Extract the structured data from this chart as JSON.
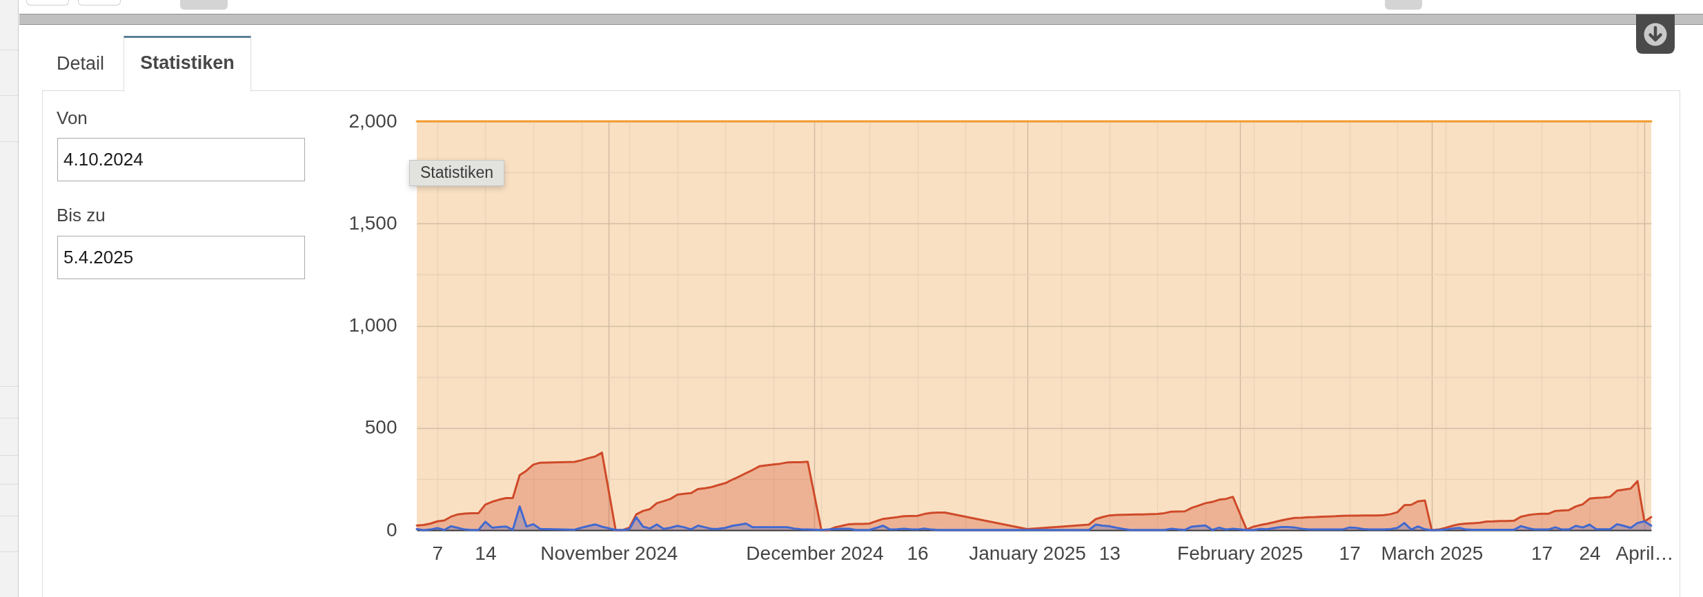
{
  "chart_data": {
    "type": "area",
    "title": "Statistiken",
    "annotations": [
      "Detail",
      "Von",
      "4.10.2024",
      "Bis zu",
      "5.4.2025",
      "Statistiken"
    ],
    "x": [
      "2024-10-04",
      "2024-10-05",
      "2024-10-06",
      "2024-10-07",
      "2024-10-08",
      "2024-10-09",
      "2024-10-10",
      "2024-10-11",
      "2024-10-12",
      "2024-10-13",
      "2024-10-14",
      "2024-10-15",
      "2024-10-16",
      "2024-10-17",
      "2024-10-18",
      "2024-10-19",
      "2024-10-20",
      "2024-10-21",
      "2024-10-22",
      "2024-10-27",
      "2024-10-28",
      "2024-10-29",
      "2024-10-30",
      "2024-10-31",
      "2024-11-02",
      "2024-11-03",
      "2024-11-04",
      "2024-11-05",
      "2024-11-06",
      "2024-11-07",
      "2024-11-08",
      "2024-11-09",
      "2024-11-10",
      "2024-11-11",
      "2024-11-12",
      "2024-11-13",
      "2024-11-14",
      "2024-11-15",
      "2024-11-16",
      "2024-11-17",
      "2024-11-18",
      "2024-11-19",
      "2024-11-20",
      "2024-11-21",
      "2024-11-22",
      "2024-11-23",
      "2024-11-24",
      "2024-11-25",
      "2024-11-26",
      "2024-11-27",
      "2024-11-28",
      "2024-11-29",
      "2024-11-30",
      "2024-12-02",
      "2024-12-03",
      "2024-12-04",
      "2024-12-05",
      "2024-12-06",
      "2024-12-07",
      "2024-12-08",
      "2024-12-09",
      "2024-12-10",
      "2024-12-11",
      "2024-12-12",
      "2024-12-13",
      "2024-12-14",
      "2024-12-15",
      "2024-12-16",
      "2024-12-17",
      "2024-12-18",
      "2024-12-19",
      "2024-12-20",
      "2025-01-01",
      "2025-01-10",
      "2025-01-11",
      "2025-01-12",
      "2025-01-13",
      "2025-01-14",
      "2025-01-15",
      "2025-01-16",
      "2025-01-17",
      "2025-01-18",
      "2025-01-19",
      "2025-01-20",
      "2025-01-21",
      "2025-01-22",
      "2025-01-23",
      "2025-01-24",
      "2025-01-25",
      "2025-01-26",
      "2025-01-27",
      "2025-01-28",
      "2025-01-29",
      "2025-01-30",
      "2025-01-31",
      "2025-02-02",
      "2025-02-03",
      "2025-02-04",
      "2025-02-05",
      "2025-02-06",
      "2025-02-07",
      "2025-02-08",
      "2025-02-09",
      "2025-02-10",
      "2025-02-11",
      "2025-02-12",
      "2025-02-13",
      "2025-02-14",
      "2025-02-15",
      "2025-02-16",
      "2025-02-17",
      "2025-02-18",
      "2025-02-19",
      "2025-02-20",
      "2025-02-21",
      "2025-02-22",
      "2025-02-23",
      "2025-02-24",
      "2025-02-25",
      "2025-02-26",
      "2025-02-27",
      "2025-02-28",
      "2025-03-01",
      "2025-03-02",
      "2025-03-03",
      "2025-03-04",
      "2025-03-05",
      "2025-03-06",
      "2025-03-07",
      "2025-03-08",
      "2025-03-09",
      "2025-03-10",
      "2025-03-11",
      "2025-03-12",
      "2025-03-13",
      "2025-03-14",
      "2025-03-15",
      "2025-03-16",
      "2025-03-17",
      "2025-03-18",
      "2025-03-19",
      "2025-03-20",
      "2025-03-21",
      "2025-03-22",
      "2025-03-23",
      "2025-03-24",
      "2025-03-25",
      "2025-03-26",
      "2025-03-27",
      "2025-03-28",
      "2025-03-29",
      "2025-03-30",
      "2025-03-31",
      "2025-04-01",
      "2025-04-02"
    ],
    "series": [
      {
        "type": "line",
        "color": "#f39a2c",
        "x": [
          "2024-10-04",
          "2025-04-02"
        ],
        "values": [
          2000,
          2000
        ]
      },
      {
        "color": "#cf4a29",
        "values": [
          23,
          25,
          32,
          43,
          47,
          66,
          77,
          81,
          83,
          83,
          125,
          139,
          149,
          157,
          157,
          269,
          291,
          321,
          330,
          334,
          342,
          352,
          360,
          379,
          0,
          0,
          12,
          77,
          94,
          103,
          132,
          142,
          153,
          174,
          178,
          181,
          201,
          205,
          211,
          221,
          230,
          247,
          262,
          279,
          295,
          313,
          317,
          321,
          325,
          331,
          332,
          332,
          335,
          0,
          0,
          14,
          21,
          29,
          30,
          30,
          32,
          44,
          55,
          59,
          63,
          68,
          69,
          70,
          79,
          84,
          86,
          86,
          5,
          27,
          54,
          64,
          72,
          74,
          75,
          76,
          77,
          77,
          78,
          79,
          83,
          90,
          91,
          92,
          109,
          120,
          132,
          138,
          149,
          153,
          163,
          3,
          17,
          25,
          31,
          39,
          47,
          54,
          60,
          61,
          63,
          64,
          66,
          67,
          68,
          70,
          71,
          71,
          72,
          72,
          72,
          73,
          78,
          88,
          122,
          124,
          141,
          145,
          0,
          3,
          11,
          21,
          29,
          32,
          34,
          36,
          42,
          43,
          45,
          45,
          46,
          66,
          73,
          78,
          80,
          80,
          94,
          96,
          98,
          116,
          126,
          154,
          158,
          159,
          163,
          193,
          198,
          203,
          240,
          42,
          64
        ]
      },
      {
        "color": "#4169d0",
        "values": [
          5,
          0,
          3,
          10,
          1,
          19,
          11,
          3,
          1,
          1,
          41,
          12,
          15,
          18,
          1,
          116,
          18,
          29,
          6,
          2,
          12,
          20,
          28,
          17,
          1,
          1,
          4,
          63,
          17,
          8,
          28,
          6,
          12,
          21,
          14,
          4,
          22,
          14,
          6,
          7,
          11,
          21,
          26,
          32,
          14,
          14,
          14,
          14,
          14,
          14,
          8,
          4,
          3,
          1,
          3,
          5,
          7,
          7,
          1,
          1,
          1,
          11,
          22,
          3,
          4,
          7,
          4,
          3,
          8,
          3,
          1,
          1,
          1,
          1,
          27,
          22,
          19,
          12,
          6,
          1,
          1,
          1,
          1,
          1,
          1,
          7,
          3,
          1,
          17,
          20,
          23,
          1,
          12,
          3,
          7,
          1,
          1,
          6,
          4,
          10,
          15,
          15,
          13,
          7,
          3,
          3,
          3,
          3,
          3,
          3,
          13,
          11,
          5,
          3,
          3,
          3,
          5,
          11,
          35,
          3,
          18,
          4,
          0,
          1,
          3,
          8,
          11,
          3,
          2,
          2,
          2,
          2,
          2,
          2,
          2,
          20,
          10,
          3,
          3,
          3,
          14,
          3,
          3,
          21,
          13,
          27,
          4,
          4,
          4,
          29,
          21,
          11,
          35,
          43,
          22
        ]
      }
    ],
    "bands": [
      {
        "axis": "y",
        "from": 0,
        "to": 2000,
        "color": "#f9e0c3"
      }
    ],
    "xlim": [
      "2024-10-04",
      "2025-04-02"
    ],
    "xticks": [
      {
        "value": "2024-10-07",
        "label": "7"
      },
      {
        "value": "2024-10-14",
        "label": "14"
      },
      {
        "value": "2024-10-21",
        "label": null
      },
      {
        "value": "2024-10-28",
        "label": null
      },
      {
        "value": "2024-11-01",
        "label": "November 2024"
      },
      {
        "value": "2024-11-04",
        "label": null
      },
      {
        "value": "2024-11-11",
        "label": null
      },
      {
        "value": "2024-11-18",
        "label": null
      },
      {
        "value": "2024-11-25",
        "label": null
      },
      {
        "value": "2024-12-01",
        "label": "December 2024"
      },
      {
        "value": "2024-12-02",
        "label": null
      },
      {
        "value": "2024-12-09",
        "label": null
      },
      {
        "value": "2024-12-16",
        "label": "16"
      },
      {
        "value": "2024-12-23",
        "label": null
      },
      {
        "value": "2024-12-30",
        "label": null
      },
      {
        "value": "2025-01-01",
        "label": "January 2025"
      },
      {
        "value": "2025-01-06",
        "label": null
      },
      {
        "value": "2025-01-13",
        "label": "13"
      },
      {
        "value": "2025-01-20",
        "label": null
      },
      {
        "value": "2025-01-27",
        "label": null
      },
      {
        "value": "2025-02-01",
        "label": "February 2025"
      },
      {
        "value": "2025-02-03",
        "label": null
      },
      {
        "value": "2025-02-10",
        "label": null
      },
      {
        "value": "2025-02-17",
        "label": "17"
      },
      {
        "value": "2025-02-24",
        "label": null
      },
      {
        "value": "2025-03-01",
        "label": "March 2025"
      },
      {
        "value": "2025-03-03",
        "label": null
      },
      {
        "value": "2025-03-10",
        "label": null
      },
      {
        "value": "2025-03-17",
        "label": "17"
      },
      {
        "value": "2025-03-24",
        "label": "24"
      },
      {
        "value": "2025-03-31",
        "label": null
      },
      {
        "value": "2025-04-01",
        "label": "April…"
      }
    ],
    "ylim": [
      0,
      2000
    ],
    "yticks": [
      0,
      {
        "value": 250,
        "label": null
      },
      500,
      {
        "value": 750,
        "label": null
      },
      {
        "value": 1000,
        "label": "1,000"
      },
      {
        "value": 1250,
        "label": null
      },
      {
        "value": 1500,
        "label": "1,500"
      },
      {
        "value": 1750,
        "label": null
      },
      {
        "value": 2000,
        "label": "2,000"
      }
    ],
    "grid": true
  }
}
